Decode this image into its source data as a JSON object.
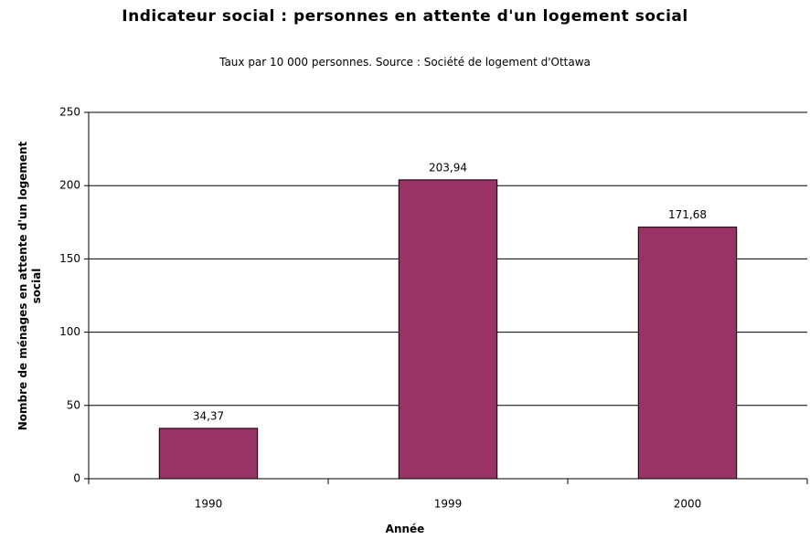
{
  "chart_data": {
    "type": "bar",
    "title": "Indicateur social : personnes en attente d'un logement social",
    "subtitle": "Taux par 10 000 personnes. Source : Société de logement d'Ottawa",
    "x_label": "Année",
    "y_label": "Nombre de ménages en attente d'un logement social",
    "categories": [
      "1990",
      "1999",
      "2000"
    ],
    "values": [
      34.37,
      203.94,
      171.68
    ],
    "value_labels": [
      "34,37",
      "203,94",
      "171,68"
    ],
    "color": "#993366",
    "ylim": [
      0,
      250
    ],
    "yticks": [
      0,
      50,
      100,
      150,
      200,
      250
    ],
    "grid": true
  }
}
